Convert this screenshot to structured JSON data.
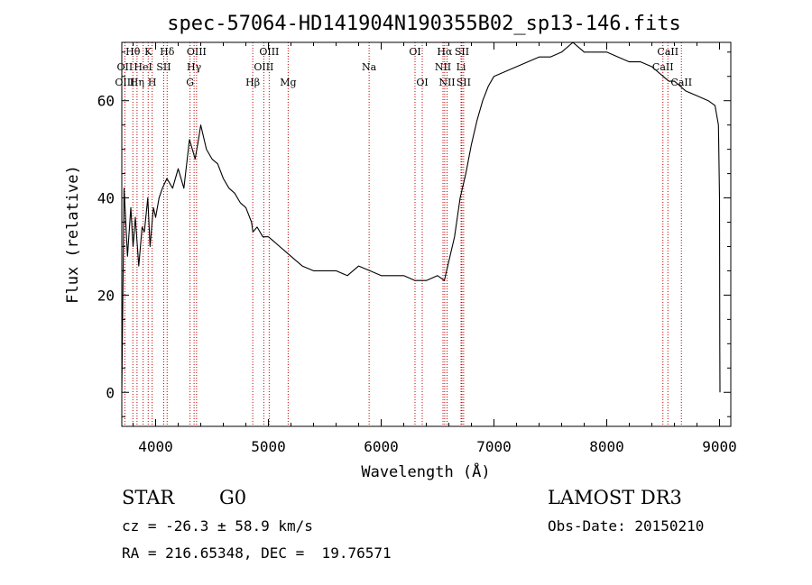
{
  "chart_data": {
    "type": "line",
    "title": "spec-57064-HD141904N190355B02_sp13-146.fits",
    "xlabel": "Wavelength (Å)",
    "ylabel": "Flux (relative)",
    "xlim": [
      3700,
      9100
    ],
    "ylim": [
      -7,
      72
    ],
    "x_ticks": [
      4000,
      5000,
      6000,
      7000,
      8000,
      9000
    ],
    "x_tick_labels": [
      "4000",
      "5000",
      "6000",
      "7000",
      "8000",
      "9000"
    ],
    "y_ticks": [
      0,
      20,
      40,
      60
    ],
    "y_tick_labels": [
      "0",
      "20",
      "40",
      "60"
    ],
    "series": [
      {
        "name": "flux",
        "color": "#000000",
        "x": [
          3700,
          3720,
          3750,
          3780,
          3800,
          3820,
          3850,
          3880,
          3900,
          3930,
          3950,
          3980,
          4000,
          4030,
          4060,
          4100,
          4150,
          4200,
          4250,
          4300,
          4350,
          4380,
          4400,
          4450,
          4500,
          4550,
          4600,
          4650,
          4700,
          4750,
          4800,
          4850,
          4862,
          4900,
          4950,
          5000,
          5050,
          5100,
          5150,
          5200,
          5300,
          5400,
          5500,
          5600,
          5700,
          5800,
          5900,
          6000,
          6100,
          6200,
          6300,
          6400,
          6500,
          6560,
          6600,
          6650,
          6700,
          6750,
          6800,
          6850,
          6900,
          6950,
          7000,
          7100,
          7200,
          7300,
          7400,
          7500,
          7600,
          7700,
          7750,
          7800,
          7900,
          8000,
          8100,
          8200,
          8300,
          8400,
          8500,
          8550,
          8600,
          8650,
          8700,
          8800,
          8900,
          8960,
          8990,
          9000,
          9002,
          9004
        ],
        "y": [
          0,
          42,
          28,
          38,
          30,
          36,
          26,
          34,
          33,
          40,
          30,
          38,
          36,
          40,
          42,
          44,
          42,
          46,
          42,
          52,
          48,
          52,
          55,
          50,
          48,
          47,
          44,
          42,
          41,
          39,
          38,
          35,
          33,
          34,
          32,
          32,
          31,
          30,
          29,
          28,
          26,
          25,
          25,
          25,
          24,
          26,
          25,
          24,
          24,
          24,
          23,
          23,
          24,
          23,
          27,
          32,
          40,
          45,
          51,
          56,
          60,
          63,
          65,
          66,
          67,
          68,
          69,
          69,
          70,
          72,
          71,
          70,
          70,
          70,
          69,
          68,
          68,
          67,
          65,
          64,
          64,
          63,
          62,
          61,
          60,
          59,
          55,
          40,
          10,
          0
        ]
      }
    ],
    "line_labels": [
      {
        "label": "Hθ",
        "wavelength": 3798,
        "row": 0
      },
      {
        "label": "OII",
        "wavelength": 3727,
        "row": 1
      },
      {
        "label": "OIII",
        "wavelength": 3727,
        "row": 2
      },
      {
        "label": "K",
        "wavelength": 3934,
        "row": 0
      },
      {
        "label": "HeI",
        "wavelength": 3889,
        "row": 1
      },
      {
        "label": "Hη",
        "wavelength": 3835,
        "row": 2
      },
      {
        "label": "H",
        "wavelength": 3969,
        "row": 2
      },
      {
        "label": "Hδ",
        "wavelength": 4102,
        "row": 0
      },
      {
        "label": "SII",
        "wavelength": 4072,
        "row": 1
      },
      {
        "label": "OIII",
        "wavelength": 4363,
        "row": 0
      },
      {
        "label": "Hγ",
        "wavelength": 4341,
        "row": 1
      },
      {
        "label": "G",
        "wavelength": 4305,
        "row": 2
      },
      {
        "label": "Hβ",
        "wavelength": 4861,
        "row": 2
      },
      {
        "label": "OIII",
        "wavelength": 5007,
        "row": 0
      },
      {
        "label": "OIII",
        "wavelength": 4959,
        "row": 1
      },
      {
        "label": "Mg",
        "wavelength": 5175,
        "row": 2
      },
      {
        "label": "Na",
        "wavelength": 5893,
        "row": 1
      },
      {
        "label": "OI",
        "wavelength": 6300,
        "row": 0
      },
      {
        "label": "OI",
        "wavelength": 6364,
        "row": 2
      },
      {
        "label": "Hα",
        "wavelength": 6563,
        "row": 0
      },
      {
        "label": "SII",
        "wavelength": 6716,
        "row": 0
      },
      {
        "label": "NII",
        "wavelength": 6548,
        "row": 1
      },
      {
        "label": "Li",
        "wavelength": 6708,
        "row": 1
      },
      {
        "label": "NII",
        "wavelength": 6584,
        "row": 2
      },
      {
        "label": "SII",
        "wavelength": 6731,
        "row": 2
      },
      {
        "label": "CaII",
        "wavelength": 8542,
        "row": 0
      },
      {
        "label": "CaII",
        "wavelength": 8498,
        "row": 1
      },
      {
        "label": "CaII",
        "wavelength": 8662,
        "row": 2
      }
    ],
    "line_marker_color": "#c00000"
  },
  "info": {
    "object_class": "STAR",
    "subclass": "G0",
    "survey": "LAMOST DR3",
    "cz": "cz = -26.3 ± 58.9 km/s",
    "obs_date": "Obs-Date: 20150210",
    "coords": "RA = 216.65348, DEC =  19.76571"
  }
}
